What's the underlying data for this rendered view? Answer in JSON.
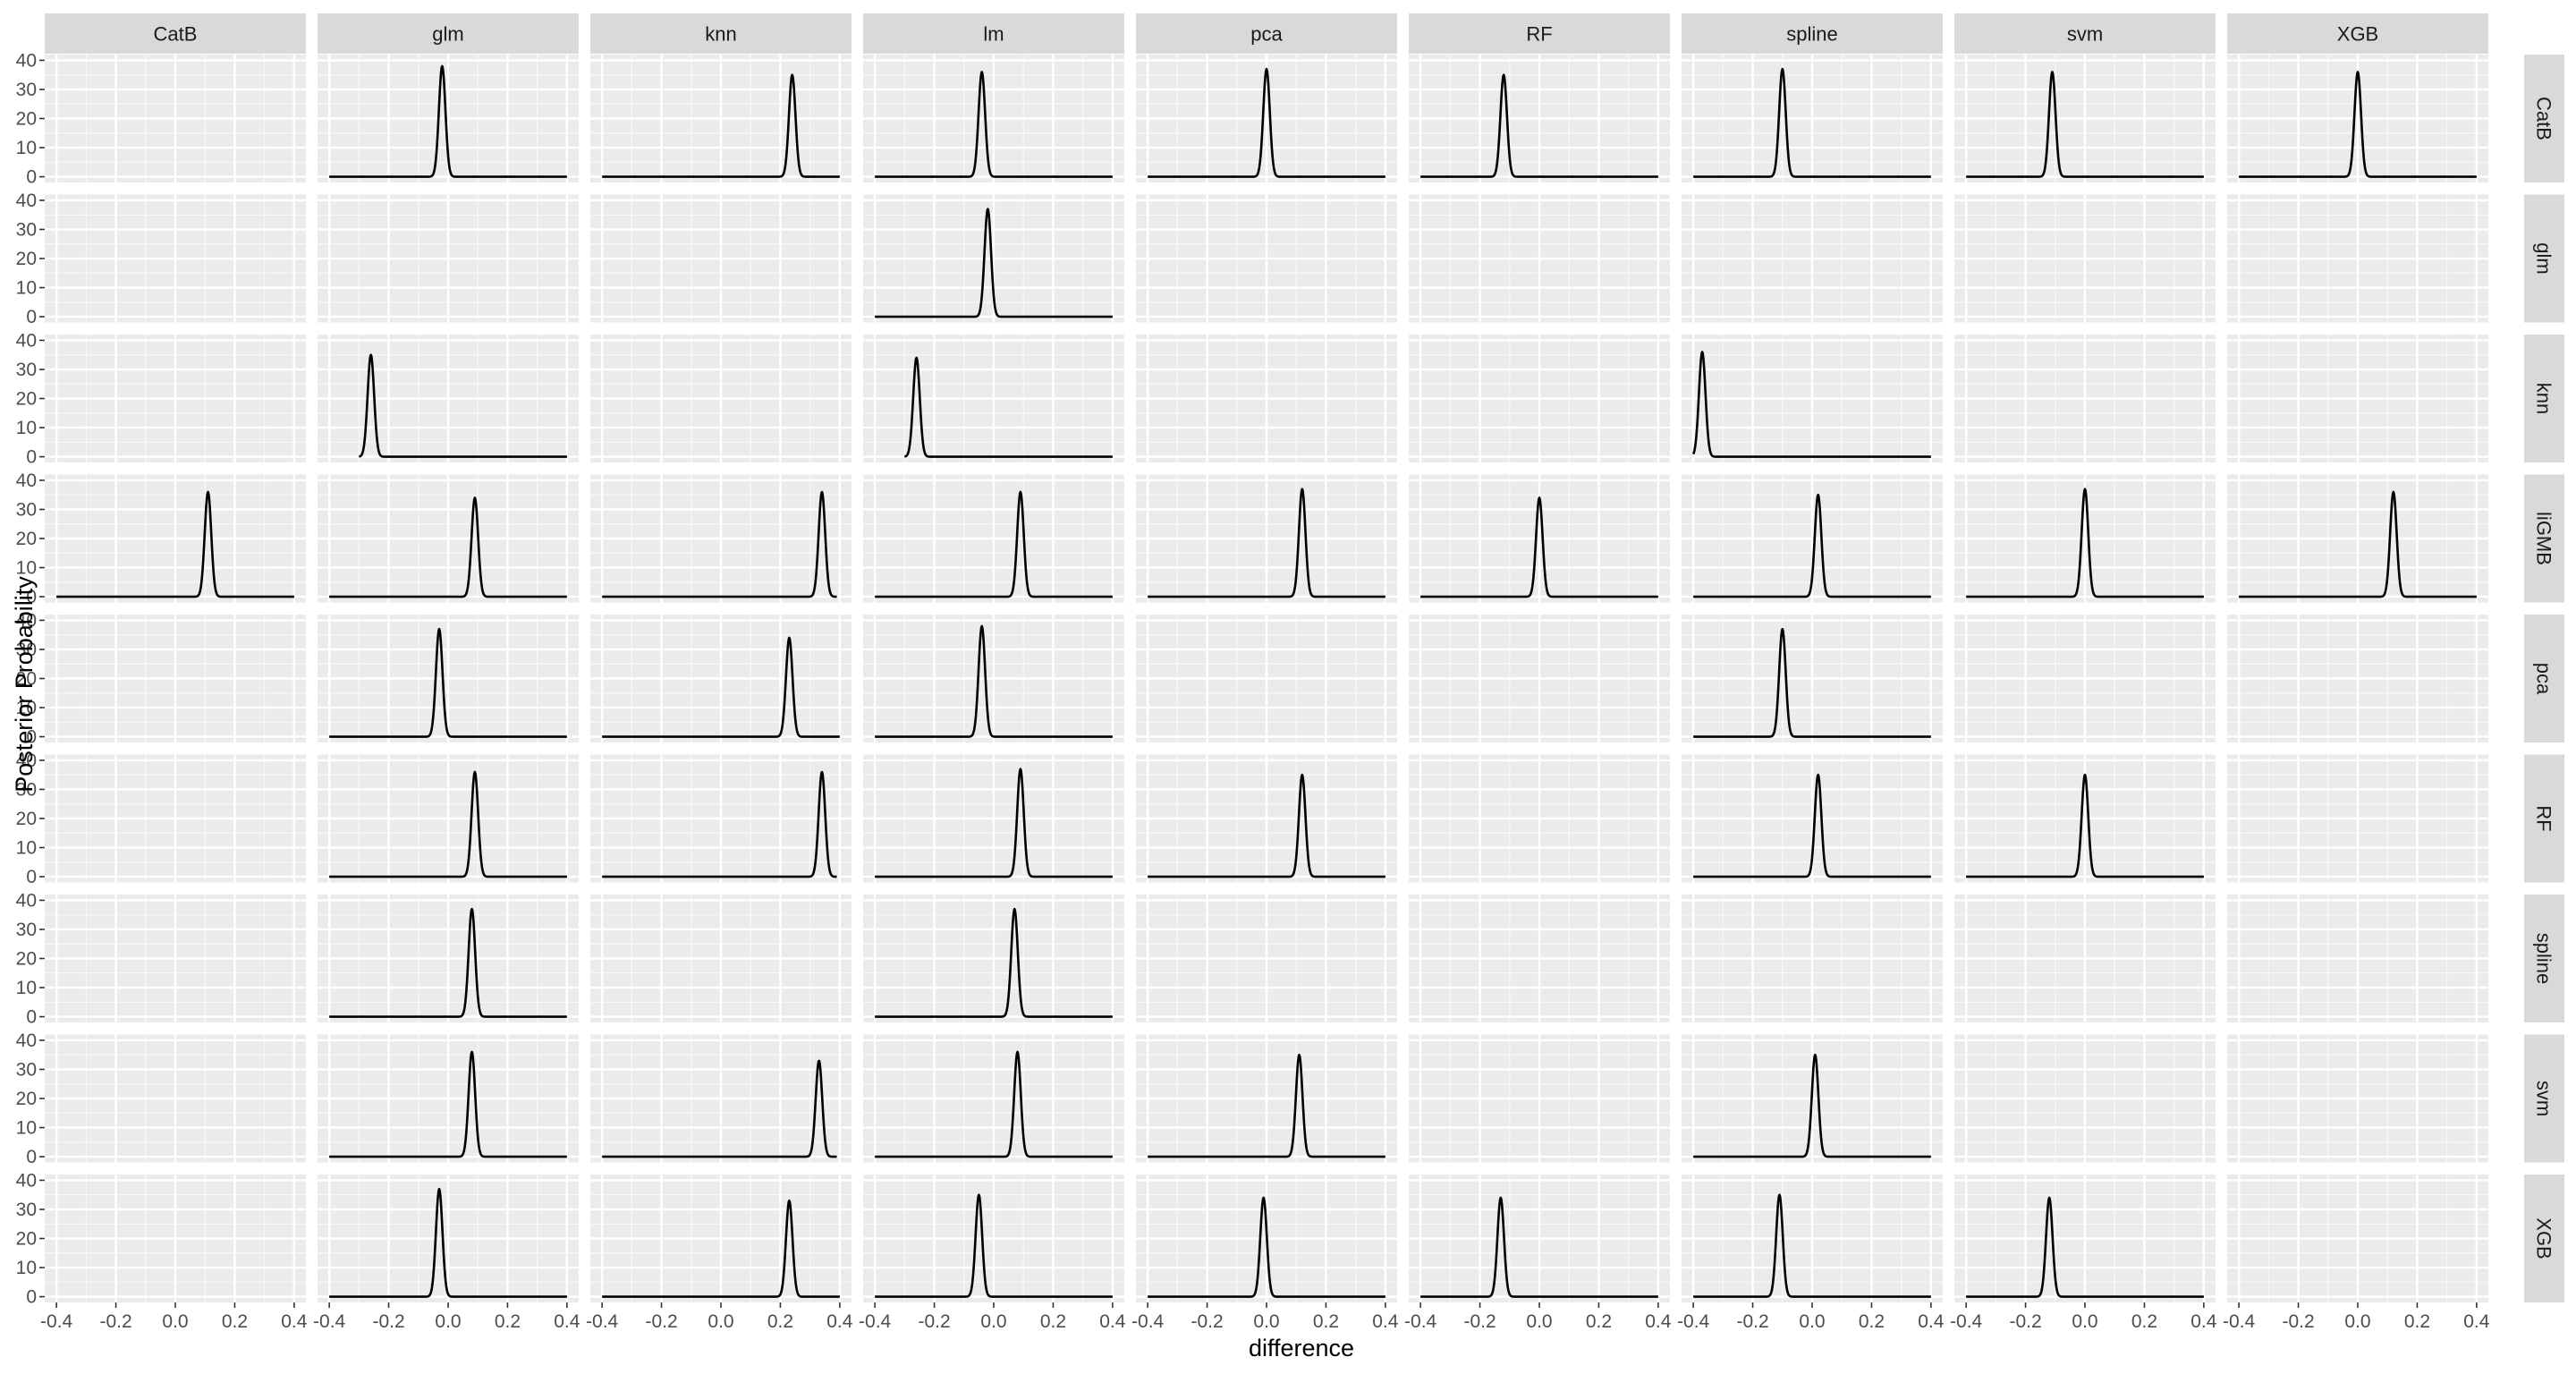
{
  "chart_data": {
    "type": "line",
    "facet_type": "grid",
    "xlabel": "difference",
    "ylabel": "Posterior Probability",
    "col_labels": [
      "CatB",
      "glm",
      "knn",
      "lm",
      "pca",
      "RF",
      "spline",
      "svm",
      "XGB"
    ],
    "row_labels": [
      "CatB",
      "glm",
      "knn",
      "liGMB",
      "pca",
      "RF",
      "spline",
      "svm",
      "XGB"
    ],
    "xlim": [
      -0.4,
      0.4
    ],
    "ylim": [
      0,
      40
    ],
    "x_ticks": [
      -0.4,
      -0.2,
      0.0,
      0.2,
      0.4
    ],
    "x_tick_labels": [
      "-0.4",
      "-0.2",
      "0.0",
      "0.2",
      "0.4"
    ],
    "y_ticks": [
      0,
      10,
      20,
      30,
      40
    ],
    "y_tick_labels": [
      "0",
      "10",
      "20",
      "30",
      "40"
    ],
    "grid": true,
    "panel_background": "#ebebeb",
    "strip_background": "#d9d9d9",
    "line_color": "#000000",
    "curve_shape": "gaussian",
    "panels": [
      {
        "row": "CatB",
        "col": "glm",
        "x_min": -0.4,
        "x_max": 0.4,
        "peak_x": -0.02,
        "peak_y": 38
      },
      {
        "row": "CatB",
        "col": "knn",
        "x_min": -0.4,
        "x_max": 0.4,
        "peak_x": 0.24,
        "peak_y": 35
      },
      {
        "row": "CatB",
        "col": "lm",
        "x_min": -0.4,
        "x_max": 0.4,
        "peak_x": -0.04,
        "peak_y": 36
      },
      {
        "row": "CatB",
        "col": "pca",
        "x_min": -0.4,
        "x_max": 0.4,
        "peak_x": 0.0,
        "peak_y": 37
      },
      {
        "row": "CatB",
        "col": "RF",
        "x_min": -0.4,
        "x_max": 0.4,
        "peak_x": -0.12,
        "peak_y": 35
      },
      {
        "row": "CatB",
        "col": "spline",
        "x_min": -0.4,
        "x_max": 0.4,
        "peak_x": -0.1,
        "peak_y": 37
      },
      {
        "row": "CatB",
        "col": "svm",
        "x_min": -0.4,
        "x_max": 0.4,
        "peak_x": -0.11,
        "peak_y": 36
      },
      {
        "row": "CatB",
        "col": "XGB",
        "x_min": -0.4,
        "x_max": 0.4,
        "peak_x": 0.0,
        "peak_y": 36
      },
      {
        "row": "glm",
        "col": "lm",
        "x_min": -0.4,
        "x_max": 0.4,
        "peak_x": -0.02,
        "peak_y": 37
      },
      {
        "row": "knn",
        "col": "glm",
        "x_min": -0.3,
        "x_max": 0.4,
        "peak_x": -0.26,
        "peak_y": 35
      },
      {
        "row": "knn",
        "col": "lm",
        "x_min": -0.3,
        "x_max": 0.4,
        "peak_x": -0.26,
        "peak_y": 34
      },
      {
        "row": "knn",
        "col": "spline",
        "x_min": -0.4,
        "x_max": 0.4,
        "peak_x": -0.37,
        "peak_y": 36
      },
      {
        "row": "liGMB",
        "col": "CatB",
        "x_min": -0.4,
        "x_max": 0.4,
        "peak_x": 0.11,
        "peak_y": 36
      },
      {
        "row": "liGMB",
        "col": "glm",
        "x_min": -0.4,
        "x_max": 0.4,
        "peak_x": 0.09,
        "peak_y": 34
      },
      {
        "row": "liGMB",
        "col": "knn",
        "x_min": -0.4,
        "x_max": 0.39,
        "peak_x": 0.34,
        "peak_y": 36
      },
      {
        "row": "liGMB",
        "col": "lm",
        "x_min": -0.4,
        "x_max": 0.4,
        "peak_x": 0.09,
        "peak_y": 36
      },
      {
        "row": "liGMB",
        "col": "pca",
        "x_min": -0.4,
        "x_max": 0.4,
        "peak_x": 0.12,
        "peak_y": 37
      },
      {
        "row": "liGMB",
        "col": "RF",
        "x_min": -0.4,
        "x_max": 0.4,
        "peak_x": 0.0,
        "peak_y": 34
      },
      {
        "row": "liGMB",
        "col": "spline",
        "x_min": -0.4,
        "x_max": 0.4,
        "peak_x": 0.02,
        "peak_y": 35
      },
      {
        "row": "liGMB",
        "col": "svm",
        "x_min": -0.4,
        "x_max": 0.4,
        "peak_x": 0.0,
        "peak_y": 37
      },
      {
        "row": "liGMB",
        "col": "XGB",
        "x_min": -0.4,
        "x_max": 0.4,
        "peak_x": 0.12,
        "peak_y": 36
      },
      {
        "row": "pca",
        "col": "glm",
        "x_min": -0.4,
        "x_max": 0.4,
        "peak_x": -0.03,
        "peak_y": 37
      },
      {
        "row": "pca",
        "col": "knn",
        "x_min": -0.4,
        "x_max": 0.4,
        "peak_x": 0.23,
        "peak_y": 34
      },
      {
        "row": "pca",
        "col": "lm",
        "x_min": -0.4,
        "x_max": 0.4,
        "peak_x": -0.04,
        "peak_y": 38
      },
      {
        "row": "pca",
        "col": "spline",
        "x_min": -0.4,
        "x_max": 0.4,
        "peak_x": -0.1,
        "peak_y": 37
      },
      {
        "row": "RF",
        "col": "glm",
        "x_min": -0.4,
        "x_max": 0.4,
        "peak_x": 0.09,
        "peak_y": 36
      },
      {
        "row": "RF",
        "col": "knn",
        "x_min": -0.4,
        "x_max": 0.39,
        "peak_x": 0.34,
        "peak_y": 36
      },
      {
        "row": "RF",
        "col": "lm",
        "x_min": -0.4,
        "x_max": 0.4,
        "peak_x": 0.09,
        "peak_y": 37
      },
      {
        "row": "RF",
        "col": "pca",
        "x_min": -0.4,
        "x_max": 0.4,
        "peak_x": 0.12,
        "peak_y": 35
      },
      {
        "row": "RF",
        "col": "spline",
        "x_min": -0.4,
        "x_max": 0.4,
        "peak_x": 0.02,
        "peak_y": 35
      },
      {
        "row": "RF",
        "col": "svm",
        "x_min": -0.4,
        "x_max": 0.4,
        "peak_x": 0.0,
        "peak_y": 35
      },
      {
        "row": "spline",
        "col": "glm",
        "x_min": -0.4,
        "x_max": 0.4,
        "peak_x": 0.08,
        "peak_y": 37
      },
      {
        "row": "spline",
        "col": "lm",
        "x_min": -0.4,
        "x_max": 0.4,
        "peak_x": 0.07,
        "peak_y": 37
      },
      {
        "row": "svm",
        "col": "glm",
        "x_min": -0.4,
        "x_max": 0.4,
        "peak_x": 0.08,
        "peak_y": 36
      },
      {
        "row": "svm",
        "col": "knn",
        "x_min": -0.4,
        "x_max": 0.39,
        "peak_x": 0.33,
        "peak_y": 33
      },
      {
        "row": "svm",
        "col": "lm",
        "x_min": -0.4,
        "x_max": 0.4,
        "peak_x": 0.08,
        "peak_y": 36
      },
      {
        "row": "svm",
        "col": "pca",
        "x_min": -0.4,
        "x_max": 0.4,
        "peak_x": 0.11,
        "peak_y": 35
      },
      {
        "row": "svm",
        "col": "spline",
        "x_min": -0.4,
        "x_max": 0.4,
        "peak_x": 0.01,
        "peak_y": 35
      },
      {
        "row": "XGB",
        "col": "glm",
        "x_min": -0.4,
        "x_max": 0.4,
        "peak_x": -0.03,
        "peak_y": 37
      },
      {
        "row": "XGB",
        "col": "knn",
        "x_min": -0.4,
        "x_max": 0.4,
        "peak_x": 0.23,
        "peak_y": 33
      },
      {
        "row": "XGB",
        "col": "lm",
        "x_min": -0.4,
        "x_max": 0.4,
        "peak_x": -0.05,
        "peak_y": 35
      },
      {
        "row": "XGB",
        "col": "pca",
        "x_min": -0.4,
        "x_max": 0.4,
        "peak_x": -0.01,
        "peak_y": 34
      },
      {
        "row": "XGB",
        "col": "RF",
        "x_min": -0.4,
        "x_max": 0.4,
        "peak_x": -0.13,
        "peak_y": 34
      },
      {
        "row": "XGB",
        "col": "spline",
        "x_min": -0.4,
        "x_max": 0.4,
        "peak_x": -0.11,
        "peak_y": 35
      },
      {
        "row": "XGB",
        "col": "svm",
        "x_min": -0.4,
        "x_max": 0.4,
        "peak_x": -0.12,
        "peak_y": 34
      }
    ]
  }
}
